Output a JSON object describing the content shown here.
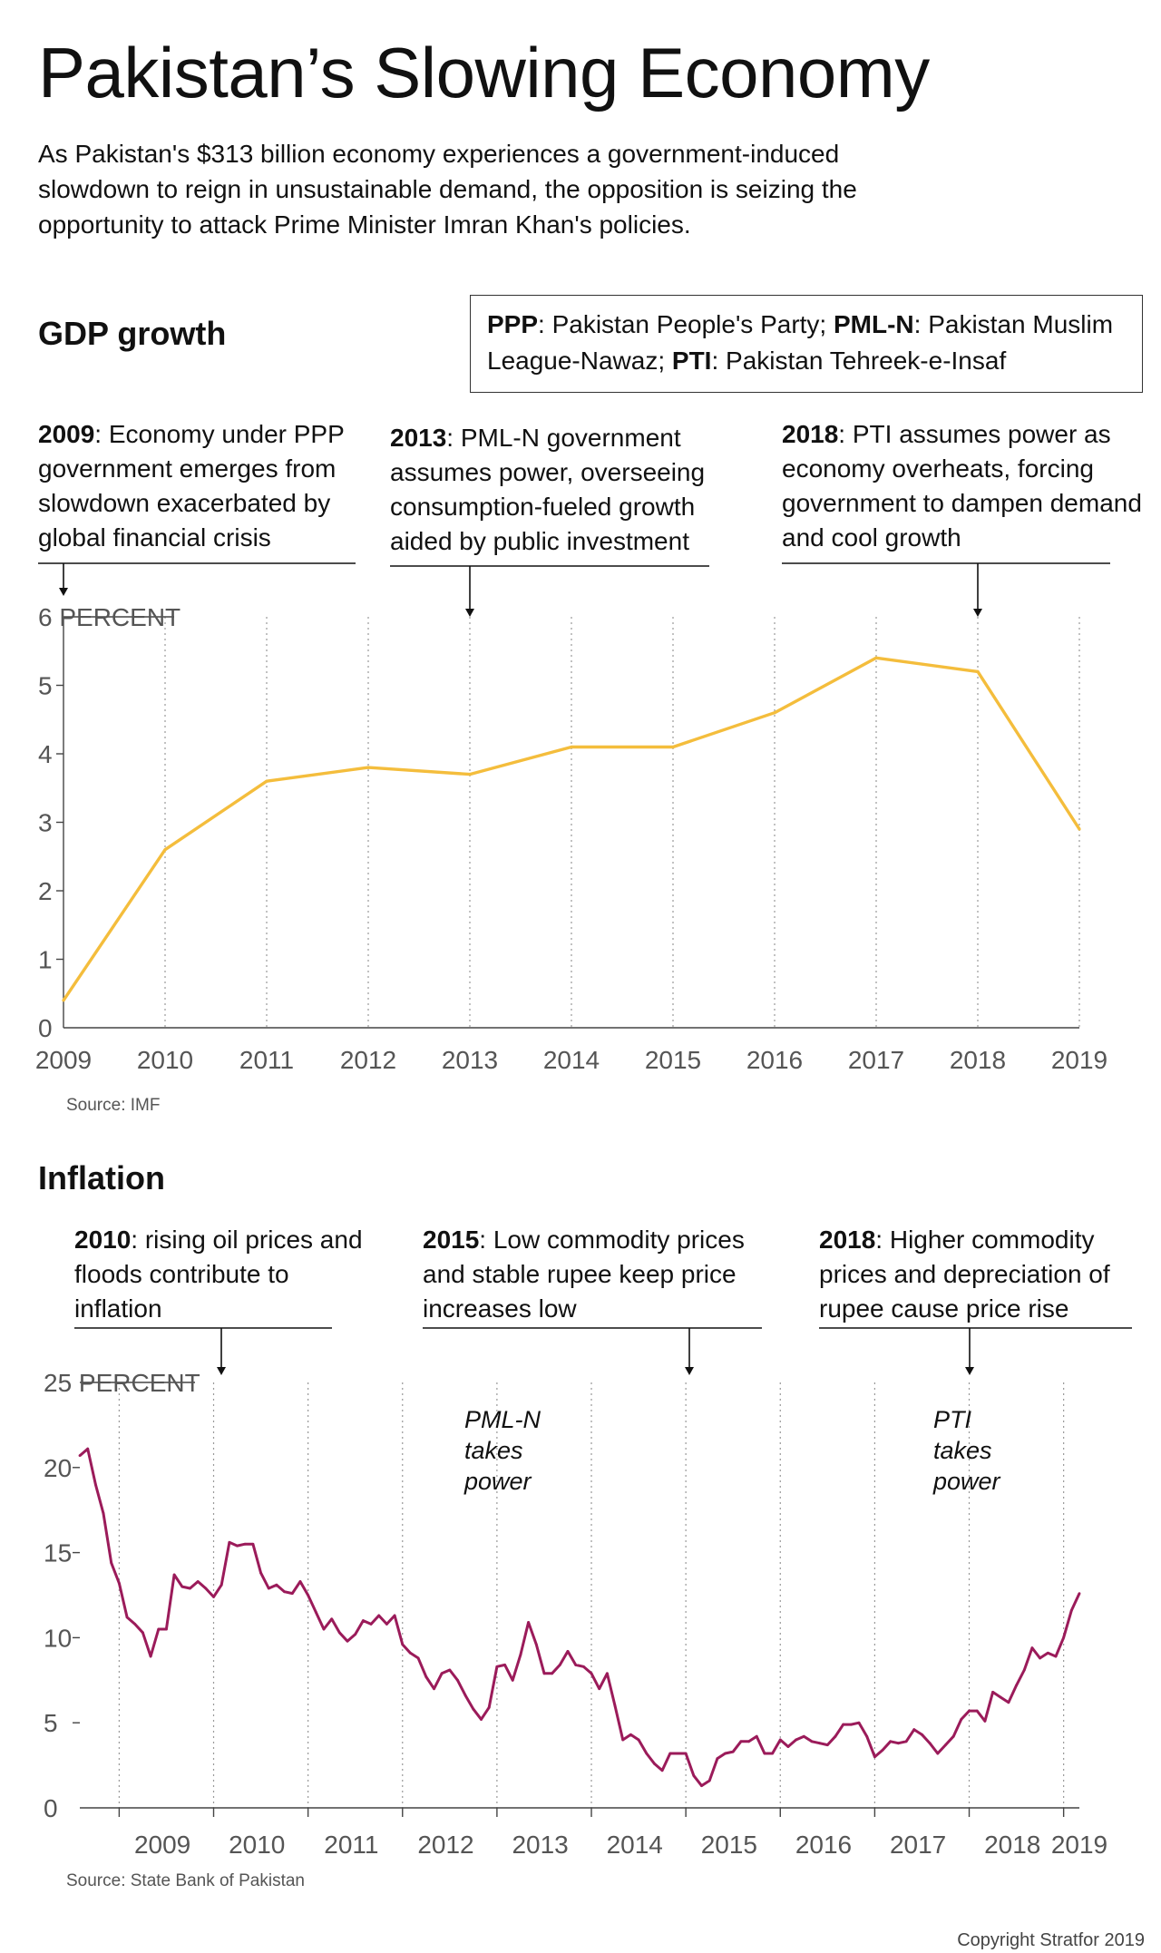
{
  "header": {
    "title": "Pakistan’s Slowing Economy",
    "subtitle": "As Pakistan's $313 billion economy experiences a government-induced slowdown to reign in unsustainable demand, the opposition is seizing the opportunity to attack Prime Minister Imran Khan's policies."
  },
  "legend": {
    "ppp_abbr": "PPP",
    "ppp_text": ": Pakistan People's Party; ",
    "pmln_abbr": "PML-N",
    "pmln_text": ": Pakistan Muslim League-Nawaz; ",
    "pti_abbr": "PTI",
    "pti_text": ": Pakistan Tehreek-e-Insaf"
  },
  "gdp": {
    "section_title": "GDP growth",
    "source": "Source: IMF",
    "annotations": [
      {
        "year": "2009",
        "text": ": Economy under PPP government emerges from slowdown exacerbated by global financial crisis"
      },
      {
        "year": "2013",
        "text": ": PML-N government assumes power, overseeing consumption-fueled growth aided by public investment"
      },
      {
        "year": "2018",
        "text": ": PTI assumes power as economy overheats, forcing government to dampen demand and cool growth"
      }
    ]
  },
  "inflation": {
    "section_title": "Inflation",
    "source": "Source: State Bank of Pakistan",
    "annotations": [
      {
        "year": "2010",
        "text": ": rising oil prices and floods contribute to inflation"
      },
      {
        "year": "2015",
        "text": ": Low commodity prices and stable rupee keep price increases low"
      },
      {
        "year": "2018",
        "text": ": Higher commodity prices and depreciation of rupee cause price rise"
      }
    ],
    "notes": [
      "PML-N takes power",
      "PTI takes power"
    ]
  },
  "copyright": "Copyright Stratfor 2019",
  "chart_data": [
    {
      "type": "line",
      "title": "GDP growth",
      "ylabel": "PERCENT",
      "x": [
        "2009",
        "2010",
        "2011",
        "2012",
        "2013",
        "2014",
        "2015",
        "2016",
        "2017",
        "2018",
        "2019"
      ],
      "series": [
        {
          "values": [
            0.4,
            2.6,
            3.6,
            3.8,
            3.7,
            4.1,
            4.1,
            4.6,
            5.4,
            5.2,
            2.9
          ]
        }
      ],
      "ylim": [
        0,
        6
      ],
      "yticks": [
        "0",
        "1",
        "2",
        "3",
        "4",
        "5",
        "6 PERCENT"
      ],
      "grid": "vertical dotted",
      "line_color": "#f4bd3c",
      "source": "Source: IMF"
    },
    {
      "type": "line",
      "title": "Inflation",
      "ylabel": "PERCENT",
      "x_start": "2008-08",
      "x_frequency": "monthly",
      "xticks": [
        "2009",
        "2010",
        "2011",
        "2012",
        "2013",
        "2014",
        "2015",
        "2016",
        "2017",
        "2018",
        "2019"
      ],
      "series": [
        {
          "values": [
            20.7,
            21.1,
            19.0,
            17.3,
            14.4,
            13.2,
            11.2,
            10.8,
            10.3,
            8.9,
            10.5,
            10.5,
            13.7,
            13.0,
            12.9,
            13.3,
            12.9,
            12.4,
            13.1,
            15.6,
            15.4,
            15.5,
            15.5,
            13.8,
            12.9,
            13.1,
            12.7,
            12.6,
            13.3,
            12.5,
            11.5,
            10.5,
            11.1,
            10.3,
            9.8,
            10.2,
            11.0,
            10.8,
            11.3,
            10.8,
            11.3,
            9.6,
            9.1,
            8.8,
            7.7,
            7.0,
            7.9,
            8.1,
            7.5,
            6.6,
            5.8,
            5.2,
            5.9,
            8.3,
            8.4,
            7.5,
            9.0,
            10.9,
            9.6,
            7.9,
            7.9,
            8.4,
            9.2,
            8.4,
            8.3,
            7.9,
            7.0,
            7.9,
            6.0,
            4.0,
            4.3,
            4.0,
            3.2,
            2.6,
            2.2,
            3.2,
            3.2,
            3.2,
            1.9,
            1.3,
            1.6,
            2.9,
            3.2,
            3.3,
            3.9,
            3.9,
            4.2,
            3.2,
            3.2,
            4.0,
            3.6,
            4.0,
            4.2,
            3.9,
            3.8,
            3.7,
            4.2,
            4.9,
            4.9,
            5.0,
            4.2,
            3.0,
            3.4,
            3.9,
            3.8,
            3.9,
            4.6,
            4.3,
            3.8,
            3.2,
            3.7,
            4.2,
            5.2,
            5.7,
            5.7,
            5.1,
            6.8,
            6.5,
            6.2,
            7.2,
            8.1,
            9.4,
            8.8,
            9.1,
            8.9,
            10.0,
            11.6,
            12.6
          ]
        }
      ],
      "ylim": [
        0,
        25
      ],
      "yticks": [
        "0",
        "5",
        "10",
        "15",
        "20",
        "25 PERCENT"
      ],
      "grid": "vertical dotted",
      "line_color": "#9b1b5a",
      "source": "Source: State Bank of Pakistan"
    }
  ]
}
